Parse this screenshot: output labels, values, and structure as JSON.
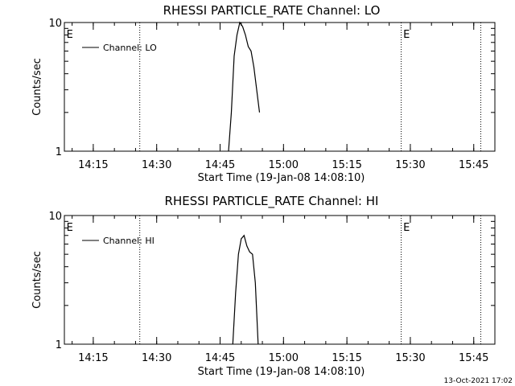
{
  "chart_data": [
    {
      "type": "line",
      "title": "RHESSI PARTICLE_RATE Channel: LO",
      "xlabel": "Start Time (19-Jan-08 14:08:10)",
      "ylabel": "Counts/sec",
      "yscale": "log",
      "ylim": [
        1,
        10
      ],
      "xlim": [
        "14:08:10",
        "15:50:00"
      ],
      "x_tick_labels": [
        "14:15",
        "14:30",
        "14:45",
        "15:00",
        "15:15",
        "15:30",
        "15:45"
      ],
      "x_tick_values": [
        "14:15",
        "14:30",
        "14:45",
        "15:00",
        "15:15",
        "15:30",
        "15:45"
      ],
      "y_tick_labels": [
        "1",
        "10"
      ],
      "grid": false,
      "legend": {
        "position": "top-left",
        "entries": [
          "Channel: LO"
        ]
      },
      "event_lines": {
        "style": "dotted",
        "times": [
          "14:26:00",
          "15:27:50",
          "15:46:40"
        ]
      },
      "event_markers": [
        {
          "label": "E",
          "time": "14:08:40"
        },
        {
          "label": "E",
          "time": "15:28:20"
        }
      ],
      "series": [
        {
          "name": "Channel: LO",
          "x": [
            "14:47:00",
            "14:47:40",
            "14:48:20",
            "14:49:00",
            "14:49:40",
            "14:50:20",
            "14:51:00",
            "14:51:40",
            "14:52:20",
            "14:53:00",
            "14:53:40",
            "14:54:20"
          ],
          "y": [
            1.0,
            2.0,
            5.5,
            8.0,
            10.0,
            9.3,
            8.0,
            6.5,
            6.0,
            4.5,
            3.0,
            2.0
          ]
        }
      ]
    },
    {
      "type": "line",
      "title": "RHESSI PARTICLE_RATE Channel: HI",
      "xlabel": "Start Time (19-Jan-08 14:08:10)",
      "ylabel": "Counts/sec",
      "yscale": "log",
      "ylim": [
        1,
        10
      ],
      "xlim": [
        "14:08:10",
        "15:50:00"
      ],
      "x_tick_labels": [
        "14:15",
        "14:30",
        "14:45",
        "15:00",
        "15:15",
        "15:30",
        "15:45"
      ],
      "x_tick_values": [
        "14:15",
        "14:30",
        "14:45",
        "15:00",
        "15:15",
        "15:30",
        "15:45"
      ],
      "y_tick_labels": [
        "1",
        "10"
      ],
      "grid": false,
      "legend": {
        "position": "top-left",
        "entries": [
          "Channel: HI"
        ]
      },
      "event_lines": {
        "style": "dotted",
        "times": [
          "14:26:00",
          "15:27:50",
          "15:46:40"
        ]
      },
      "event_markers": [
        {
          "label": "E",
          "time": "14:08:40"
        },
        {
          "label": "E",
          "time": "15:28:20"
        }
      ],
      "series": [
        {
          "name": "Channel: HI",
          "x": [
            "14:48:00",
            "14:48:40",
            "14:49:20",
            "14:50:00",
            "14:50:40",
            "14:51:20",
            "14:52:00",
            "14:52:40",
            "14:53:20",
            "14:54:00"
          ],
          "y": [
            1.0,
            2.5,
            5.0,
            6.6,
            7.0,
            5.8,
            5.2,
            5.0,
            3.0,
            1.0
          ]
        }
      ]
    }
  ],
  "footer": {
    "timestamp": "13-Oct-2021 17:02"
  }
}
